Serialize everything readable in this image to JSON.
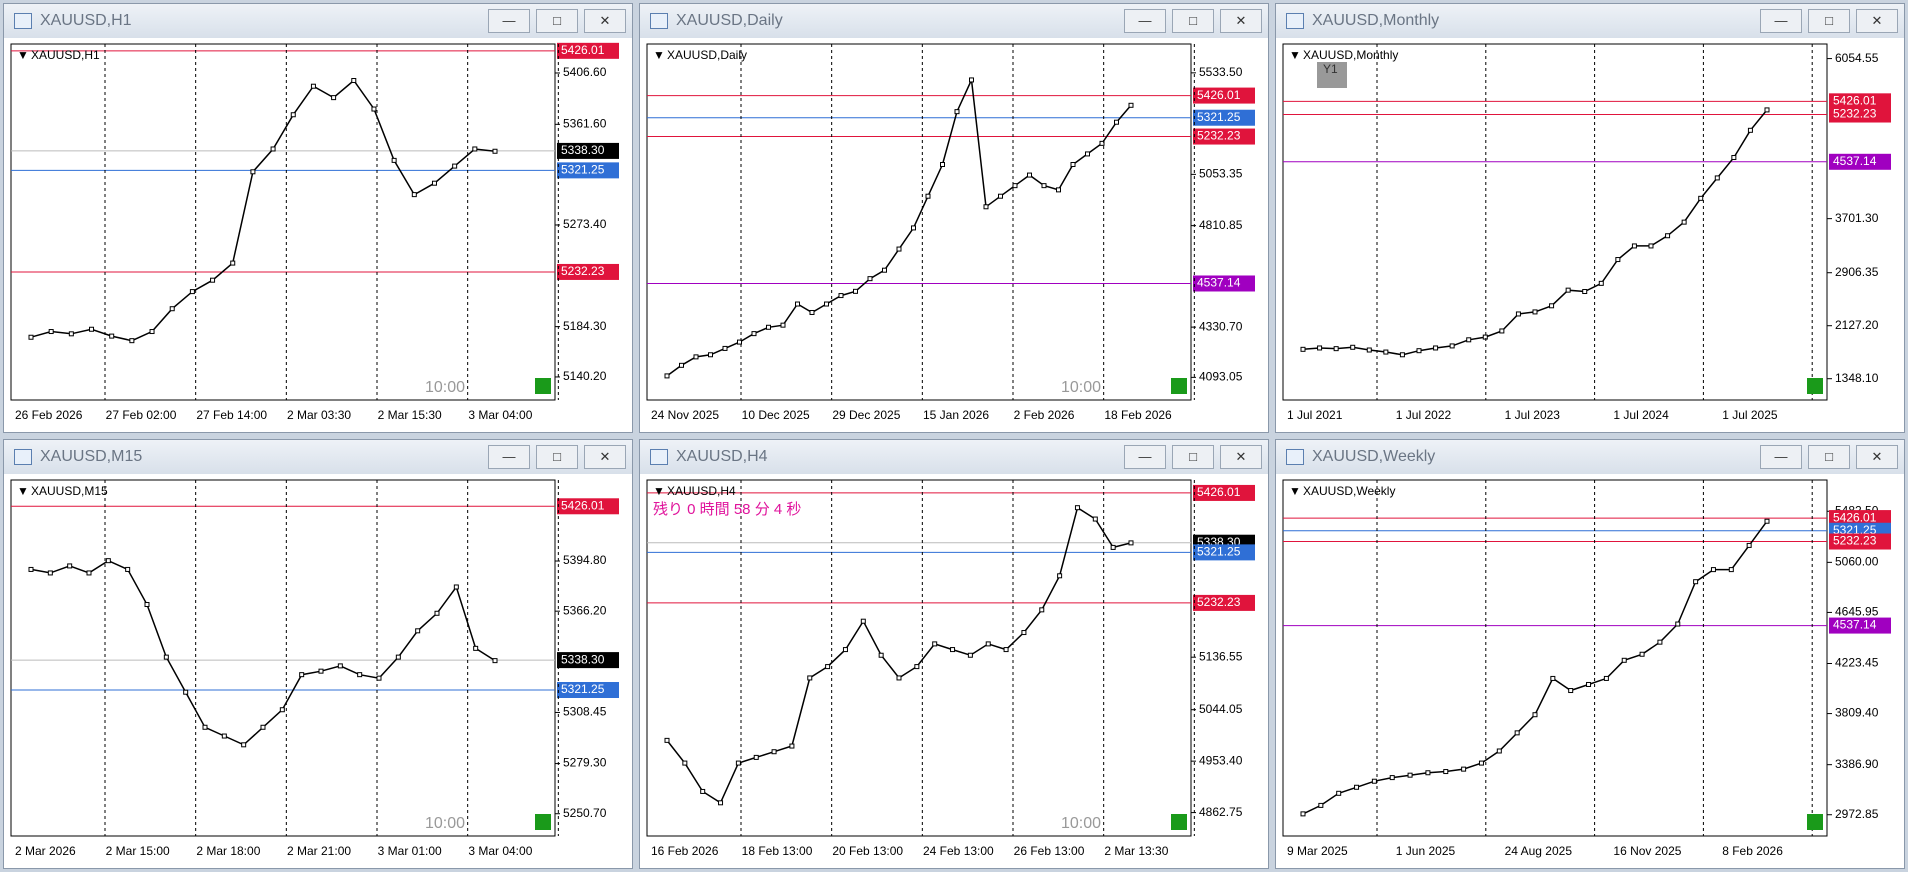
{
  "windows": [
    {
      "title": "XAUUSD,H1",
      "label": "XAUUSD,H1",
      "ylim": [
        5120,
        5432
      ],
      "yticks": [
        {
          "value": 5406.6,
          "label": "5406.60"
        },
        {
          "value": 5361.6,
          "label": "5361.60"
        },
        {
          "value": 5273.4,
          "label": "5273.40"
        },
        {
          "value": 5184.3,
          "label": "5184.30"
        },
        {
          "value": 5140.2,
          "label": "5140.20"
        }
      ],
      "levels": [
        {
          "value": 5426.01,
          "color": "#e0143c"
        },
        {
          "value": 5338.3,
          "label": "5338.30",
          "color": "#000000"
        },
        {
          "value": 5321.25,
          "color": "#2f6fd6"
        },
        {
          "value": 5232.23,
          "color": "#e0143c"
        }
      ],
      "xlabels": [
        "26 Feb 2026",
        "27 Feb 02:00",
        "27 Feb 14:00",
        "2 Mar 03:30",
        "2 Mar 15:30",
        "3 Mar 04:00"
      ],
      "closes": [
        5175,
        5180,
        5178,
        5182,
        5176,
        5172,
        5180,
        5200,
        5215,
        5225,
        5240,
        5320,
        5340,
        5370,
        5395,
        5385,
        5400,
        5375,
        5330,
        5300,
        5310,
        5325,
        5340,
        5338
      ],
      "timer": "10:00"
    },
    {
      "title": "XAUUSD,Daily",
      "label": "XAUUSD,Daily",
      "ylim": [
        3986,
        5670
      ],
      "yticks": [
        {
          "value": 5533.5,
          "label": "5533.50"
        },
        5053.35,
        4810.85,
        {
          "value": 4330.7,
          "label": "4330.70"
        },
        4093.05
      ],
      "levels": [
        {
          "value": 5426.01,
          "color": "#e0143c"
        },
        {
          "value": 5321.25,
          "color": "#2f6fd6"
        },
        {
          "value": 5232.23,
          "color": "#e0143c"
        },
        {
          "value": 4537.14,
          "color": "#a000c0"
        }
      ],
      "xlabels": [
        "24 Nov 2025",
        "10 Dec 2025",
        "29 Dec 2025",
        "15 Jan 2026",
        "2 Feb 2026",
        "18 Feb 2026"
      ],
      "closes": [
        4100,
        4150,
        4190,
        4200,
        4230,
        4260,
        4300,
        4330,
        4340,
        4440,
        4400,
        4440,
        4480,
        4500,
        4560,
        4600,
        4700,
        4800,
        4950,
        5100,
        5350,
        5500,
        4900,
        4950,
        5000,
        5050,
        5000,
        4980,
        5100,
        5150,
        5200,
        5300,
        5380
      ],
      "timer": "10:00"
    },
    {
      "title": "XAUUSD,Monthly",
      "label": "XAUUSD,Monthly",
      "ylim": [
        1035,
        6269
      ],
      "yticks": [
        6054.55,
        {
          "value": 3701.3,
          "label": "3701.30"
        },
        2906.35,
        {
          "value": 2127.2,
          "label": "2127.20"
        },
        {
          "value": 1348.1,
          "label": "1348.10"
        }
      ],
      "levels": [
        {
          "value": 5426.01,
          "color": "#e0143c"
        },
        {
          "value": 5232.23,
          "color": "#e0143c"
        },
        {
          "value": 4537.14,
          "color": "#a000c0"
        }
      ],
      "xlabels": [
        "1 Jul 2021",
        "1 Jul 2022",
        "1 Jul 2023",
        "1 Jul 2024",
        "1 Jul 2025"
      ],
      "closes": [
        1780,
        1800,
        1790,
        1810,
        1770,
        1740,
        1700,
        1760,
        1800,
        1830,
        1920,
        1960,
        2050,
        2300,
        2330,
        2420,
        2650,
        2630,
        2750,
        3100,
        3300,
        3300,
        3450,
        3650,
        4000,
        4300,
        4600,
        5000,
        5300
      ],
      "marker": "Y1"
    },
    {
      "title": "XAUUSD,M15",
      "label": "XAUUSD,M15",
      "ylim": [
        5238,
        5441
      ],
      "yticks": [
        {
          "value": 5394.8,
          "label": "5394.80"
        },
        {
          "value": 5366.2,
          "label": "5366.20"
        },
        5308.45,
        {
          "value": 5279.3,
          "label": "5279.30"
        },
        {
          "value": 5250.7,
          "label": "5250.70"
        }
      ],
      "levels": [
        {
          "value": 5426.01,
          "color": "#e0143c"
        },
        {
          "value": 5338.3,
          "label": "5338.30",
          "color": "#000000"
        },
        {
          "value": 5321.25,
          "color": "#2f6fd6"
        }
      ],
      "xlabels": [
        "2 Mar 2026",
        "2 Mar 15:00",
        "2 Mar 18:00",
        "2 Mar 21:00",
        "3 Mar 01:00",
        "3 Mar 04:00"
      ],
      "closes": [
        5390,
        5388,
        5392,
        5388,
        5395,
        5390,
        5370,
        5340,
        5320,
        5300,
        5295,
        5290,
        5300,
        5310,
        5330,
        5332,
        5335,
        5330,
        5328,
        5340,
        5355,
        5365,
        5380,
        5345,
        5338
      ],
      "timer": "10:00"
    },
    {
      "title": "XAUUSD,H4",
      "label": "XAUUSD,H4",
      "ylim": [
        4821.5,
        5448.8
      ],
      "yticks": [
        5136.55,
        5044.05,
        {
          "value": 4953.4,
          "label": "4953.40"
        },
        4862.75
      ],
      "levels": [
        {
          "value": 5426.01,
          "color": "#e0143c"
        },
        {
          "value": 5338.3,
          "label": "5338.30",
          "color": "#000000"
        },
        {
          "value": 5321.25,
          "color": "#2f6fd6"
        },
        {
          "value": 5232.23,
          "color": "#e0143c"
        }
      ],
      "xlabels": [
        "16 Feb 2026",
        "18 Feb 13:00",
        "20 Feb 13:00",
        "24 Feb 13:00",
        "26 Feb 13:00",
        "2 Mar 13:30"
      ],
      "closes": [
        4990,
        4950,
        4900,
        4880,
        4950,
        4960,
        4970,
        4980,
        5100,
        5120,
        5150,
        5200,
        5140,
        5100,
        5120,
        5160,
        5150,
        5140,
        5160,
        5150,
        5180,
        5220,
        5280,
        5400,
        5380,
        5330,
        5338
      ],
      "countdown": "残り 0 時間 58 分 4 秒",
      "timer": "10:00"
    },
    {
      "title": "XAUUSD,Weekly",
      "label": "XAUUSD,Weekly",
      "ylim": [
        2797,
        5741
      ],
      "yticks": [
        {
          "value": 5482.5,
          "label": "5482.50"
        },
        {
          "value": 5060,
          "label": "5060.00"
        },
        4645.95,
        4223.45,
        {
          "value": 3809.4,
          "label": "3809.40"
        },
        {
          "value": 3386.9,
          "label": "3386.90"
        },
        2972.85
      ],
      "levels": [
        {
          "value": 5426.01,
          "color": "#e0143c"
        },
        {
          "value": 5321.25,
          "color": "#2f6fd6"
        },
        {
          "value": 5232.23,
          "color": "#e0143c"
        },
        {
          "value": 4537.14,
          "color": "#a000c0"
        }
      ],
      "xlabels": [
        "9 Mar 2025",
        "1 Jun 2025",
        "24 Aug 2025",
        "16 Nov 2025",
        "8 Feb 2026"
      ],
      "closes": [
        2980,
        3050,
        3150,
        3200,
        3250,
        3280,
        3300,
        3320,
        3330,
        3350,
        3400,
        3500,
        3650,
        3800,
        4100,
        4000,
        4050,
        4100,
        4250,
        4300,
        4400,
        4550,
        4900,
        5000,
        5000,
        5200,
        5400
      ]
    }
  ]
}
